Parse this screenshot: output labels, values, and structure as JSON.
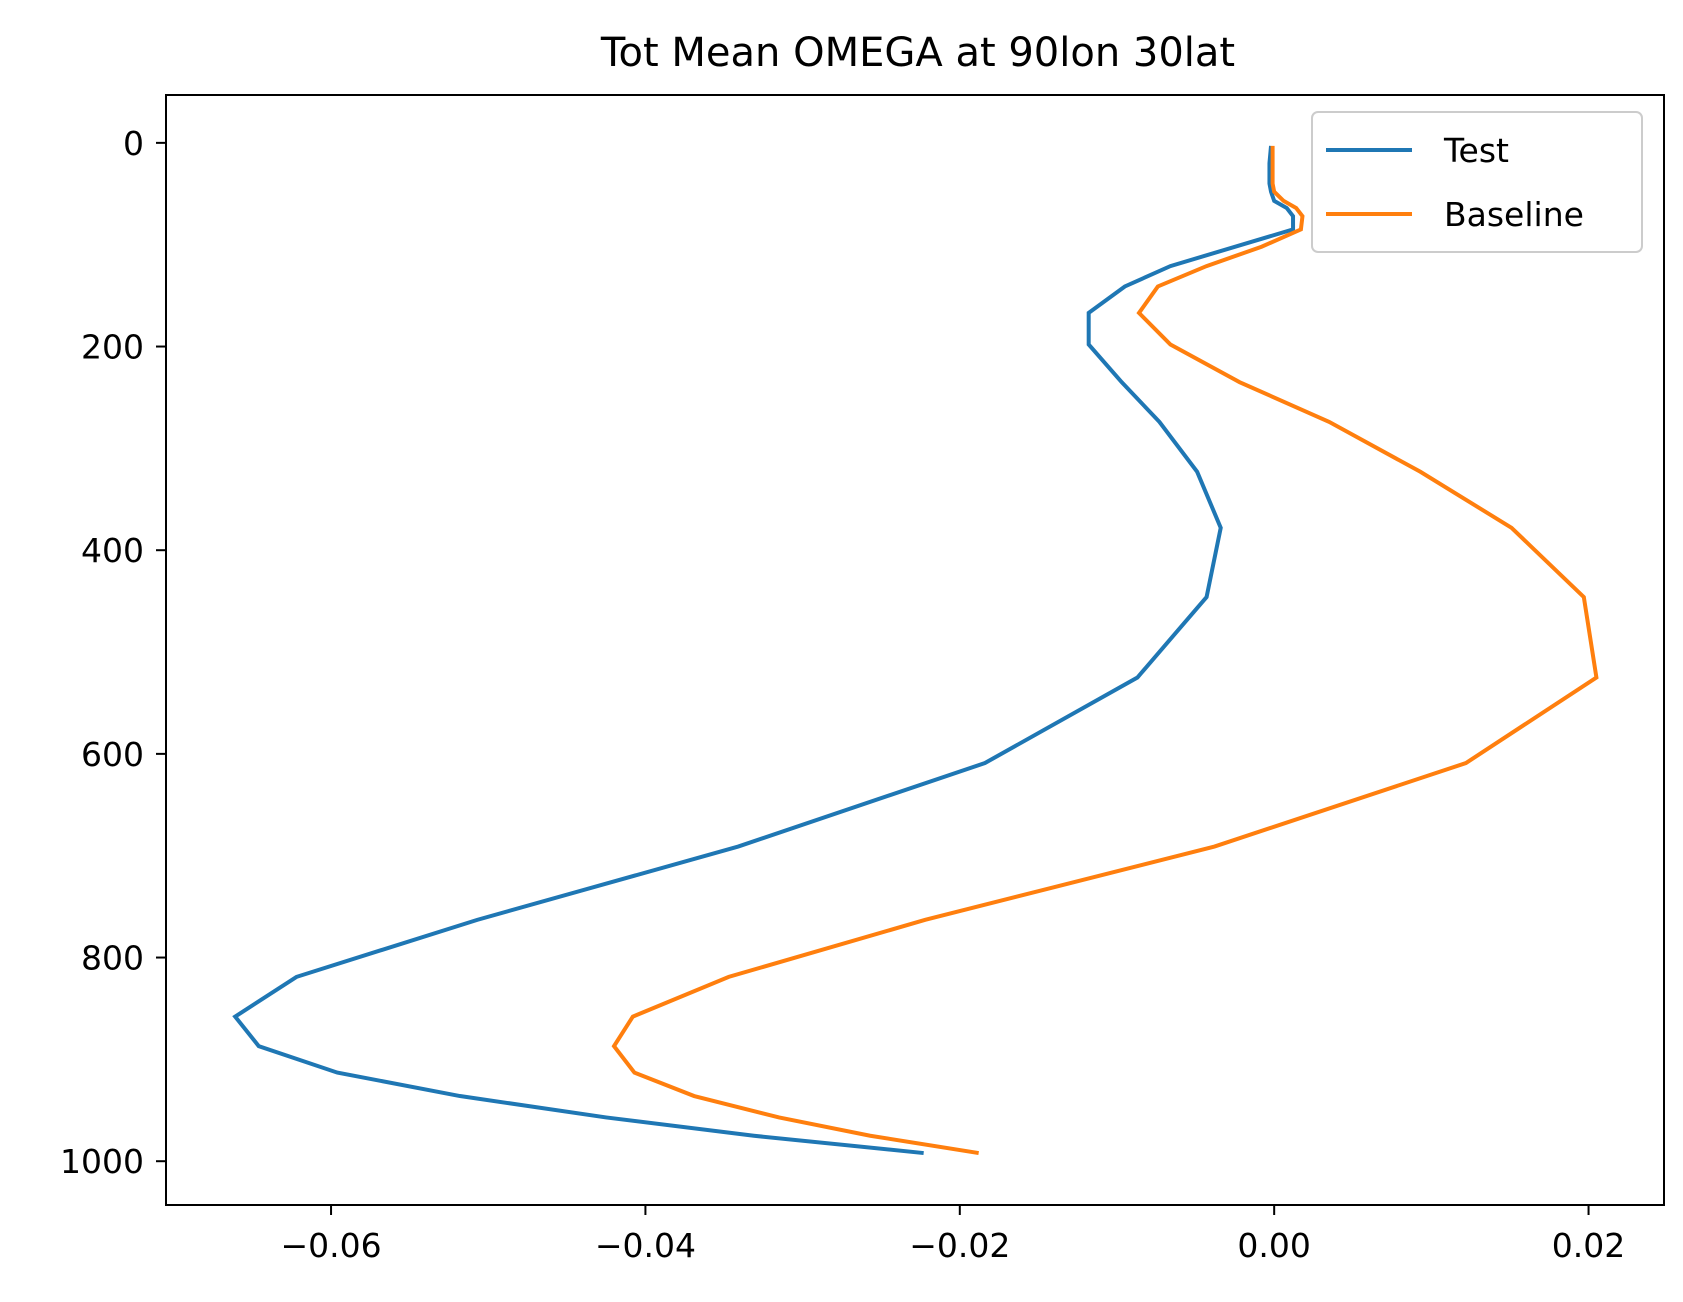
{
  "chart_data": {
    "type": "line",
    "title": "Tot Mean OMEGA at 90lon 30lat",
    "xlabel": "",
    "ylabel": "",
    "xlim": [
      -0.0705,
      0.0248
    ],
    "ylim": [
      1043,
      -47
    ],
    "y_inverted": true,
    "grid": false,
    "legend_position": "upper-right",
    "x_ticks": [
      {
        "value": -0.06,
        "label": "−0.06"
      },
      {
        "value": -0.04,
        "label": "−0.04"
      },
      {
        "value": -0.02,
        "label": "−0.02"
      },
      {
        "value": 0.0,
        "label": "0.00"
      },
      {
        "value": 0.02,
        "label": "0.02"
      }
    ],
    "y_ticks": [
      {
        "value": 0,
        "label": "0"
      },
      {
        "value": 200,
        "label": "200"
      },
      {
        "value": 400,
        "label": "400"
      },
      {
        "value": 600,
        "label": "600"
      },
      {
        "value": 800,
        "label": "800"
      },
      {
        "value": 1000,
        "label": "1000"
      }
    ],
    "series": [
      {
        "name": "Test",
        "color": "#1f77b4",
        "points": [
          [
            -0.0002,
            3
          ],
          [
            -0.0003,
            20
          ],
          [
            -0.0003,
            40
          ],
          [
            -0.0002,
            48
          ],
          [
            0.0,
            57
          ],
          [
            0.0008,
            64
          ],
          [
            0.0012,
            72
          ],
          [
            0.0012,
            85
          ],
          [
            -0.0066,
            121
          ],
          [
            -0.0095,
            141
          ],
          [
            -0.0118,
            167
          ],
          [
            -0.0118,
            198
          ],
          [
            -0.0097,
            235
          ],
          [
            -0.0073,
            274
          ],
          [
            -0.0049,
            323
          ],
          [
            -0.0034,
            378
          ],
          [
            -0.0043,
            446
          ],
          [
            -0.0087,
            525
          ],
          [
            -0.0184,
            609
          ],
          [
            -0.0341,
            691
          ],
          [
            -0.0507,
            763
          ],
          [
            -0.0622,
            819
          ],
          [
            -0.0661,
            858
          ],
          [
            -0.0646,
            887
          ],
          [
            -0.0596,
            913
          ],
          [
            -0.0518,
            936
          ],
          [
            -0.0425,
            957
          ],
          [
            -0.0331,
            975
          ],
          [
            -0.0223,
            992
          ]
        ]
      },
      {
        "name": "Baseline",
        "color": "#ff7f0e",
        "points": [
          [
            -0.0001,
            3
          ],
          [
            -0.0001,
            20
          ],
          [
            -0.0001,
            40
          ],
          [
            0.0,
            48
          ],
          [
            0.0006,
            57
          ],
          [
            0.0014,
            64
          ],
          [
            0.0018,
            72
          ],
          [
            0.0017,
            85
          ],
          [
            -0.0008,
            102
          ],
          [
            -0.0043,
            121
          ],
          [
            -0.0074,
            141
          ],
          [
            -0.0086,
            167
          ],
          [
            -0.0066,
            198
          ],
          [
            -0.0022,
            235
          ],
          [
            0.0035,
            274
          ],
          [
            0.0093,
            323
          ],
          [
            0.0151,
            378
          ],
          [
            0.0197,
            446
          ],
          [
            0.0205,
            525
          ],
          [
            0.0122,
            609
          ],
          [
            -0.0038,
            691
          ],
          [
            -0.0222,
            763
          ],
          [
            -0.0347,
            819
          ],
          [
            -0.0408,
            858
          ],
          [
            -0.042,
            887
          ],
          [
            -0.0407,
            913
          ],
          [
            -0.0369,
            936
          ],
          [
            -0.0315,
            957
          ],
          [
            -0.0257,
            975
          ],
          [
            -0.0188,
            992
          ]
        ]
      }
    ]
  }
}
